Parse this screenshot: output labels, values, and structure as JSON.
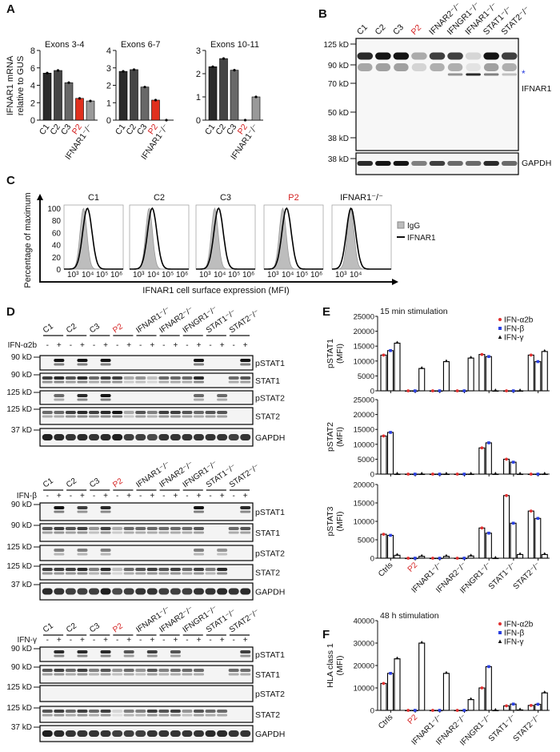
{
  "panel_labels": {
    "a": "A",
    "b": "B",
    "c": "C",
    "d": "D",
    "e": "E",
    "f": "F"
  },
  "colors": {
    "c1": "#2a2a2a",
    "c2": "#454545",
    "c3": "#686868",
    "p2": "#e0301e",
    "ko": "#9a9a9a",
    "red_label": "#d42020",
    "ifn_a2b": "#e03030",
    "ifn_b": "#2a3fe0",
    "ifn_g": "#111111",
    "asterisk": "#2a3fe0"
  },
  "panel_a": {
    "ylabel_line1": "IFNAR1 mRNA",
    "ylabel_line2": "relative to GUS"
  },
  "panel_b": {
    "lanes": [
      "C1",
      "C2",
      "C3",
      "P2",
      "IFNAR2⁻/⁻",
      "IFNGR1⁻/⁻",
      "IFNAR1⁻/⁻",
      "STAT1⁻/⁻",
      "STAT2⁻/⁻"
    ],
    "markers": [
      "125 kD",
      "90 kD",
      "70 kD",
      "50 kD",
      "38 kD"
    ],
    "gapdh_marker": "38 kD",
    "protein_label": "IFNAR1",
    "loading_label": "GAPDH",
    "asterisk": "*",
    "ifnar1_band": [
      0.9,
      1.0,
      1.0,
      0.3,
      0.8,
      0.8,
      0.1,
      1.0,
      0.8
    ],
    "asterisk_band": [
      0,
      0,
      0,
      0,
      0,
      0.4,
      0.9,
      0.5,
      0.2
    ],
    "gapdh_band": [
      0.9,
      1.0,
      1.0,
      0.5,
      0.8,
      0.6,
      0.6,
      0.9,
      0.6
    ]
  },
  "panel_c": {
    "samples": [
      "C1",
      "C2",
      "C3",
      "P2",
      "IFNAR1⁻/⁻"
    ],
    "y_ticks": [
      "100",
      "80",
      "60",
      "40",
      "20",
      "0"
    ],
    "x_ticks": [
      "10³",
      "10⁴",
      "10⁵",
      "10⁶"
    ],
    "x_ticks_last": [
      "10³",
      "10⁴"
    ],
    "ylabel": "Percentage of maximum",
    "xlabel": "IFNAR1 cell surface expression (MFI)",
    "legend": [
      "IgG",
      "IFNAR1"
    ]
  },
  "panel_d": {
    "groups": [
      "C1",
      "C2",
      "C3",
      "P2",
      "IFNAR1⁻/⁻",
      "IFNAR2⁻/⁻",
      "IFNGR1⁻/⁻",
      "STAT1⁻/⁻",
      "STAT2⁻/⁻"
    ],
    "minus": "-",
    "plus": "+",
    "blots": [
      {
        "treatment": "IFN-α2b",
        "rows": [
          {
            "label": "pSTAT1",
            "marker": "90 kD",
            "bands": [
              0,
              1,
              0,
              1,
              0,
              1,
              0,
              0,
              0,
              0,
              0,
              0,
              0,
              1,
              0,
              0,
              0,
              1
            ]
          },
          {
            "label": "STAT1",
            "marker": "90 kD",
            "bands": [
              0.8,
              0.9,
              0.7,
              0.9,
              0.6,
              0.8,
              0.8,
              0.3,
              0.4,
              0.2,
              0.6,
              0.6,
              0.6,
              0.9,
              0,
              0,
              0.6,
              0.7
            ]
          },
          {
            "label": "pSTAT2",
            "marker": "125 kD",
            "bands": [
              0,
              0.6,
              0,
              0.9,
              0,
              1,
              0,
              0,
              0,
              0,
              0,
              0,
              0,
              0.6,
              0,
              0.6,
              0,
              0
            ]
          },
          {
            "label": "STAT2",
            "marker": "125 kD",
            "bands": [
              0.6,
              0.6,
              0.8,
              0.9,
              0.8,
              0.9,
              1,
              0.3,
              0.7,
              0.5,
              0.8,
              0.8,
              0.7,
              0.6,
              0.7,
              0.7,
              0,
              0
            ]
          },
          {
            "label": "GAPDH",
            "marker": "37 kD",
            "bands": [
              0.95,
              0.9,
              0.85,
              0.9,
              0.85,
              0.9,
              0.95,
              0.8,
              0.8,
              0.75,
              0.85,
              0.85,
              0.85,
              0.85,
              0.85,
              0.85,
              0.8,
              0.85
            ]
          }
        ]
      },
      {
        "treatment": "IFN-β",
        "rows": [
          {
            "label": "pSTAT1",
            "marker": "90 kD",
            "bands": [
              0,
              1,
              0,
              0.8,
              0,
              0.9,
              0,
              0,
              0,
              0,
              0,
              0,
              0,
              1,
              0,
              0,
              0,
              0.9
            ]
          },
          {
            "label": "STAT1",
            "marker": "90 kD",
            "bands": [
              0.7,
              0.8,
              0.7,
              0.8,
              0.4,
              0.8,
              0.3,
              0.6,
              0.6,
              0.6,
              0.6,
              0.6,
              0.6,
              0.7,
              0,
              0,
              0.6,
              0.7
            ]
          },
          {
            "label": "pSTAT2",
            "marker": "125 kD",
            "bands": [
              0,
              0.5,
              0,
              0.5,
              0,
              0.5,
              0,
              0,
              0,
              0,
              0,
              0,
              0,
              0.5,
              0,
              0.4,
              0,
              0
            ]
          },
          {
            "label": "STAT2",
            "marker": "125 kD",
            "bands": [
              0.8,
              0.8,
              0.8,
              0.9,
              0.5,
              0.9,
              0.2,
              0.6,
              0.7,
              0.8,
              0.7,
              0.8,
              0.6,
              0.8,
              0.5,
              0.9,
              0,
              0
            ]
          },
          {
            "label": "GAPDH",
            "marker": "37 kD",
            "bands": [
              0.9,
              0.85,
              0.8,
              0.8,
              0.8,
              0.95,
              0.75,
              0.8,
              0.85,
              0.85,
              0.8,
              0.8,
              0.8,
              0.85,
              0.85,
              0.9,
              0.85,
              0.9
            ]
          }
        ]
      },
      {
        "treatment": "IFN-γ",
        "rows": [
          {
            "label": "pSTAT1",
            "marker": "90 kD",
            "bands": [
              0,
              0.9,
              0,
              0.9,
              0,
              0.9,
              0,
              0.7,
              0,
              0.8,
              0,
              0.7,
              0,
              0,
              0,
              0,
              0,
              0.8
            ]
          },
          {
            "label": "STAT1",
            "marker": "90 kD",
            "bands": [
              0.7,
              0.8,
              0.6,
              0.8,
              0.5,
              0.7,
              0.4,
              0.6,
              0.4,
              0.7,
              0.5,
              0.6,
              0.6,
              0.6,
              0,
              0,
              0.6,
              0.6
            ]
          },
          {
            "label": "pSTAT2",
            "marker": "125 kD",
            "bands": [
              0,
              0,
              0,
              0,
              0,
              0,
              0,
              0,
              0,
              0,
              0,
              0,
              0,
              0,
              0,
              0,
              0,
              0
            ]
          },
          {
            "label": "STAT2",
            "marker": "125 kD",
            "bands": [
              0.7,
              0.8,
              0.6,
              0.8,
              0.6,
              0.8,
              0.1,
              0.5,
              0.5,
              0.8,
              0.7,
              0.8,
              0.4,
              0.7,
              0.6,
              0.6,
              0,
              0
            ]
          },
          {
            "label": "GAPDH",
            "marker": "37 kD",
            "bands": [
              0.95,
              0.9,
              0.85,
              0.85,
              0.85,
              0.85,
              0.8,
              0.8,
              0.8,
              0.85,
              0.85,
              0.85,
              0.85,
              0.85,
              0.9,
              0.9,
              0.85,
              0.85
            ]
          }
        ]
      }
    ]
  },
  "chart_data": [
    {
      "id": "a1",
      "type": "bar",
      "title": "Exons 3-4",
      "categories": [
        "C1",
        "C2",
        "C3",
        "P2",
        "IFNAR1⁻/⁻"
      ],
      "values": [
        5.4,
        5.7,
        4.3,
        2.5,
        2.2
      ],
      "ylim": [
        0,
        8
      ],
      "y_ticks": [
        "0",
        "2",
        "4",
        "6",
        "8"
      ],
      "ylabel": "IFNAR1 mRNA relative to GUS"
    },
    {
      "id": "a2",
      "type": "bar",
      "title": "Exons 6-7",
      "categories": [
        "C1",
        "C2",
        "C3",
        "P2",
        "IFNAR1⁻/⁻"
      ],
      "values": [
        2.8,
        2.9,
        1.9,
        1.15,
        0
      ],
      "ylim": [
        0,
        4
      ],
      "y_ticks": [
        "0",
        "1",
        "2",
        "3",
        "4"
      ]
    },
    {
      "id": "a3",
      "type": "bar",
      "title": "Exons 10-11",
      "categories": [
        "C1",
        "C2",
        "C3",
        "P2",
        "IFNAR1⁻/⁻"
      ],
      "values": [
        2.3,
        2.65,
        2.15,
        0,
        1.0
      ],
      "ylim": [
        0,
        3
      ],
      "y_ticks": [
        "0",
        "1",
        "2",
        "3"
      ]
    },
    {
      "id": "e1",
      "type": "bar",
      "title": "15 min stimulation",
      "ylabel": "pSTAT1",
      "yunit": "(MFI)",
      "ylim": [
        0,
        25000
      ],
      "y_ticks": [
        "0",
        "5000",
        "10000",
        "15000",
        "20000",
        "25000"
      ],
      "categories": [
        "Ctrls",
        "P2",
        "IFNAR1⁻/⁻",
        "IFNAR2⁻/⁻",
        "IFNGR1⁻/⁻",
        "STAT1⁻/⁻",
        "STAT2⁻/⁻"
      ],
      "series": [
        {
          "name": "IFN-α2b",
          "values": [
            12000,
            0,
            0,
            0,
            12200,
            0,
            12000
          ]
        },
        {
          "name": "IFN-β",
          "values": [
            13500,
            0,
            0,
            0,
            11500,
            0,
            9800
          ]
        },
        {
          "name": "IFN-γ",
          "values": [
            16000,
            7500,
            9800,
            11000,
            0,
            0,
            13200
          ]
        }
      ]
    },
    {
      "id": "e2",
      "type": "bar",
      "ylabel": "pSTAT2",
      "yunit": "(MFI)",
      "ylim": [
        0,
        25000
      ],
      "y_ticks": [
        "0",
        "5000",
        "10000",
        "15000",
        "20000",
        "25000"
      ],
      "categories": [
        "Ctrls",
        "P2",
        "IFNAR1⁻/⁻",
        "IFNAR2⁻/⁻",
        "IFNGR1⁻/⁻",
        "STAT1⁻/⁻",
        "STAT2⁻/⁻"
      ],
      "series": [
        {
          "name": "IFN-α2b",
          "values": [
            12800,
            0,
            0,
            0,
            8800,
            5000,
            0
          ]
        },
        {
          "name": "IFN-β",
          "values": [
            14000,
            0,
            0,
            0,
            10500,
            4000,
            0
          ]
        },
        {
          "name": "IFN-γ",
          "values": [
            0,
            0,
            0,
            0,
            0,
            0,
            0
          ]
        }
      ]
    },
    {
      "id": "e3",
      "type": "bar",
      "ylabel": "pSTAT3",
      "yunit": "(MFI)",
      "ylim": [
        0,
        20000
      ],
      "y_ticks": [
        "0",
        "5000",
        "10000",
        "15000",
        "20000"
      ],
      "categories": [
        "Ctrls",
        "P2",
        "IFNAR1⁻/⁻",
        "IFNAR2⁻/⁻",
        "IFNGR1⁻/⁻",
        "STAT1⁻/⁻",
        "STAT2⁻/⁻"
      ],
      "series": [
        {
          "name": "IFN-α2b",
          "values": [
            6500,
            0,
            0,
            0,
            8200,
            17000,
            12800
          ]
        },
        {
          "name": "IFN-β",
          "values": [
            6200,
            0,
            0,
            0,
            6800,
            9500,
            10800
          ]
        },
        {
          "name": "IFN-γ",
          "values": [
            800,
            500,
            500,
            600,
            0,
            1000,
            1000
          ]
        }
      ]
    },
    {
      "id": "f",
      "type": "bar",
      "title": "48 h stimulation",
      "ylabel": "HLA class 1",
      "yunit": "(MFI)",
      "ylim": [
        0,
        40000
      ],
      "y_ticks": [
        "0",
        "10000",
        "20000",
        "30000",
        "40000"
      ],
      "categories": [
        "Ctrls",
        "P2",
        "IFNAR1⁻/⁻",
        "IFNAR2⁻/⁻",
        "IFNGR1⁻/⁻",
        "STAT1⁻/⁻",
        "STAT2⁻/⁻"
      ],
      "series": [
        {
          "name": "IFN-α2b",
          "values": [
            12000,
            0,
            0,
            0,
            10000,
            2000,
            2200
          ]
        },
        {
          "name": "IFN-β",
          "values": [
            16500,
            0,
            0,
            0,
            19500,
            2800,
            2700
          ]
        },
        {
          "name": "IFN-γ",
          "values": [
            23000,
            30000,
            16500,
            4800,
            0,
            200,
            7800
          ]
        }
      ]
    }
  ]
}
